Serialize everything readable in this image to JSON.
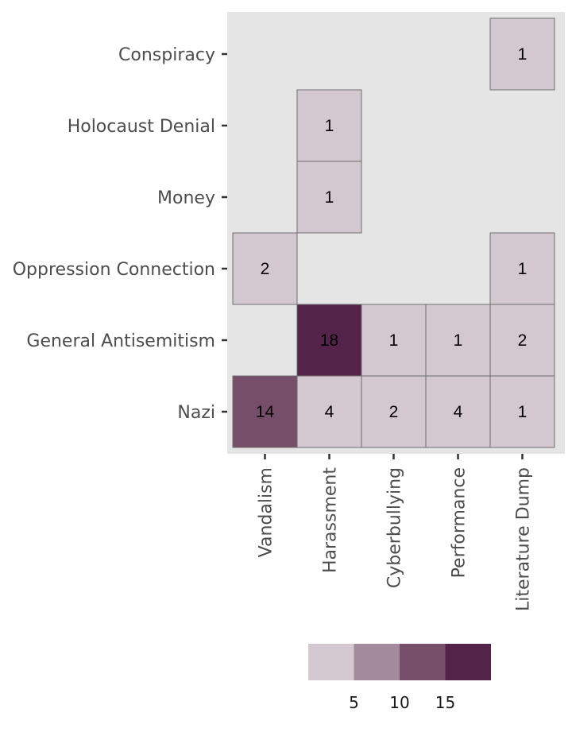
{
  "chart_data": {
    "type": "heatmap",
    "x_categories": [
      "Vandalism",
      "Harassment",
      "Cyberbullying",
      "Performance",
      "Literature Dump"
    ],
    "y_categories": [
      "Conspiracy",
      "Holocaust Denial",
      "Money",
      "Oppression Connection",
      "General Antisemitism",
      "Nazi"
    ],
    "cells": [
      {
        "x": "Literature Dump",
        "y": "Conspiracy",
        "value": 1
      },
      {
        "x": "Harassment",
        "y": "Holocaust Denial",
        "value": 1
      },
      {
        "x": "Harassment",
        "y": "Money",
        "value": 1
      },
      {
        "x": "Vandalism",
        "y": "Oppression Connection",
        "value": 2
      },
      {
        "x": "Literature Dump",
        "y": "Oppression Connection",
        "value": 1
      },
      {
        "x": "Harassment",
        "y": "General Antisemitism",
        "value": 18
      },
      {
        "x": "Cyberbullying",
        "y": "General Antisemitism",
        "value": 1
      },
      {
        "x": "Performance",
        "y": "General Antisemitism",
        "value": 1
      },
      {
        "x": "Literature Dump",
        "y": "General Antisemitism",
        "value": 2
      },
      {
        "x": "Vandalism",
        "y": "Nazi",
        "value": 14
      },
      {
        "x": "Harassment",
        "y": "Nazi",
        "value": 4
      },
      {
        "x": "Cyberbullying",
        "y": "Nazi",
        "value": 2
      },
      {
        "x": "Performance",
        "y": "Nazi",
        "value": 4
      },
      {
        "x": "Literature Dump",
        "y": "Nazi",
        "value": 1
      }
    ],
    "color_bins": [
      {
        "max": 5,
        "color": "#d3c7d0"
      },
      {
        "max": 10,
        "color": "#a5899c"
      },
      {
        "max": 15,
        "color": "#774e6a"
      },
      {
        "max": 20,
        "color": "#54234a"
      }
    ],
    "legend_ticks": [
      "5",
      "10",
      "15"
    ],
    "panel_background": "#e5e5e5",
    "legend_position": "bottom",
    "grid": false
  }
}
